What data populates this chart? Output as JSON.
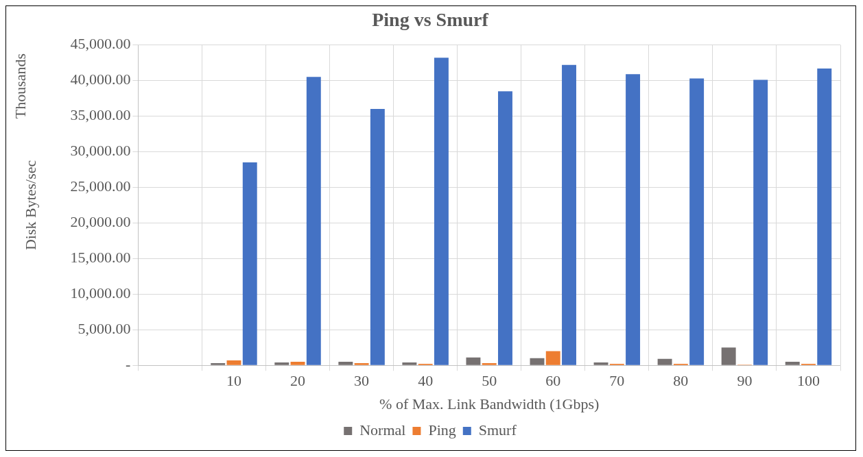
{
  "chart_data": {
    "type": "bar",
    "title": "Ping vs Smurf",
    "xlabel": "% of Max. Link Bandwidth (1Gbps)",
    "ylabel": "Disk Bytes/sec",
    "annotations": [
      "Thousands"
    ],
    "categories": [
      null,
      "10",
      "20",
      "30",
      "40",
      "50",
      "60",
      "70",
      "80",
      "90",
      "100"
    ],
    "series": [
      {
        "name": "Normal",
        "color": "#767171",
        "values": [
          null,
          300,
          400,
          500,
          400,
          1100,
          1000,
          400,
          900,
          2500,
          500
        ]
      },
      {
        "name": "Ping",
        "color": "#ed7d31",
        "values": [
          null,
          700,
          500,
          300,
          200,
          300,
          2000,
          200,
          200,
          100,
          200
        ]
      },
      {
        "name": "Smurf",
        "color": "#4472c4",
        "values": [
          null,
          28500,
          40500,
          36000,
          43200,
          38500,
          42200,
          40900,
          40300,
          40100,
          41700
        ]
      }
    ],
    "ylim": [
      0,
      45000
    ],
    "yticks": [
      {
        "value": 0,
        "label": "-"
      },
      {
        "value": 5000,
        "label": "5,000.00"
      },
      {
        "value": 10000,
        "label": "10,000.00"
      },
      {
        "value": 15000,
        "label": "15,000.00"
      },
      {
        "value": 20000,
        "label": "20,000.00"
      },
      {
        "value": 25000,
        "label": "25,000.00"
      },
      {
        "value": 30000,
        "label": "30,000.00"
      },
      {
        "value": 35000,
        "label": "35,000.00"
      },
      {
        "value": 40000,
        "label": "40,000.00"
      },
      {
        "value": 45000,
        "label": "45,000.00"
      }
    ],
    "grid": true,
    "legend": "bottom"
  }
}
